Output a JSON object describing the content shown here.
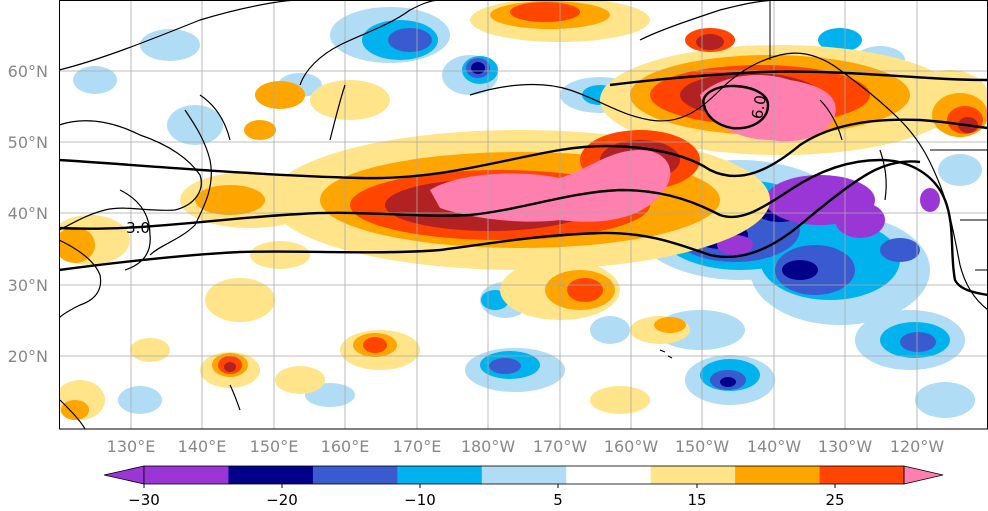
{
  "map": {
    "lat_labels": [
      "60°N",
      "50°N",
      "40°N",
      "30°N",
      "20°N"
    ],
    "lon_labels": [
      "130°E",
      "140°E",
      "150°E",
      "160°E",
      "170°E",
      "180°W",
      "170°W",
      "160°W",
      "150°W",
      "140°W",
      "130°W",
      "120°W"
    ],
    "contour_labels": [
      "3.0",
      "6.0"
    ]
  },
  "colorbar": {
    "tick_labels": [
      "−30",
      "−20",
      "−10",
      "5",
      "15",
      "25"
    ],
    "colors": [
      "#9a35d6",
      "#00008b",
      "#3a5bd0",
      "#00b2ee",
      "#b0dcf5",
      "#ffffff",
      "#ffe48a",
      "#ffa500",
      "#ff4500",
      "#b22222",
      "#ff7fae"
    ]
  },
  "chart_data": {
    "type": "heatmap",
    "title": "",
    "xlabel": "",
    "ylabel": "",
    "x_ticks": [
      "130°E",
      "140°E",
      "150°E",
      "160°E",
      "170°E",
      "180°W",
      "170°W",
      "160°W",
      "150°W",
      "140°W",
      "130°W",
      "120°W"
    ],
    "y_ticks": [
      "60°N",
      "50°N",
      "40°N",
      "30°N",
      "20°N"
    ],
    "colorbar_levels": [
      -30,
      -25,
      -20,
      -15,
      -10,
      -5,
      5,
      10,
      15,
      20,
      25
    ],
    "colorbar_tick_labels": [
      "−30",
      "−20",
      "−10",
      "5",
      "15",
      "25"
    ],
    "colorbar_extend": "both",
    "contour_levels_labeled": [
      "3.0",
      "6.0"
    ],
    "grid": true
  }
}
